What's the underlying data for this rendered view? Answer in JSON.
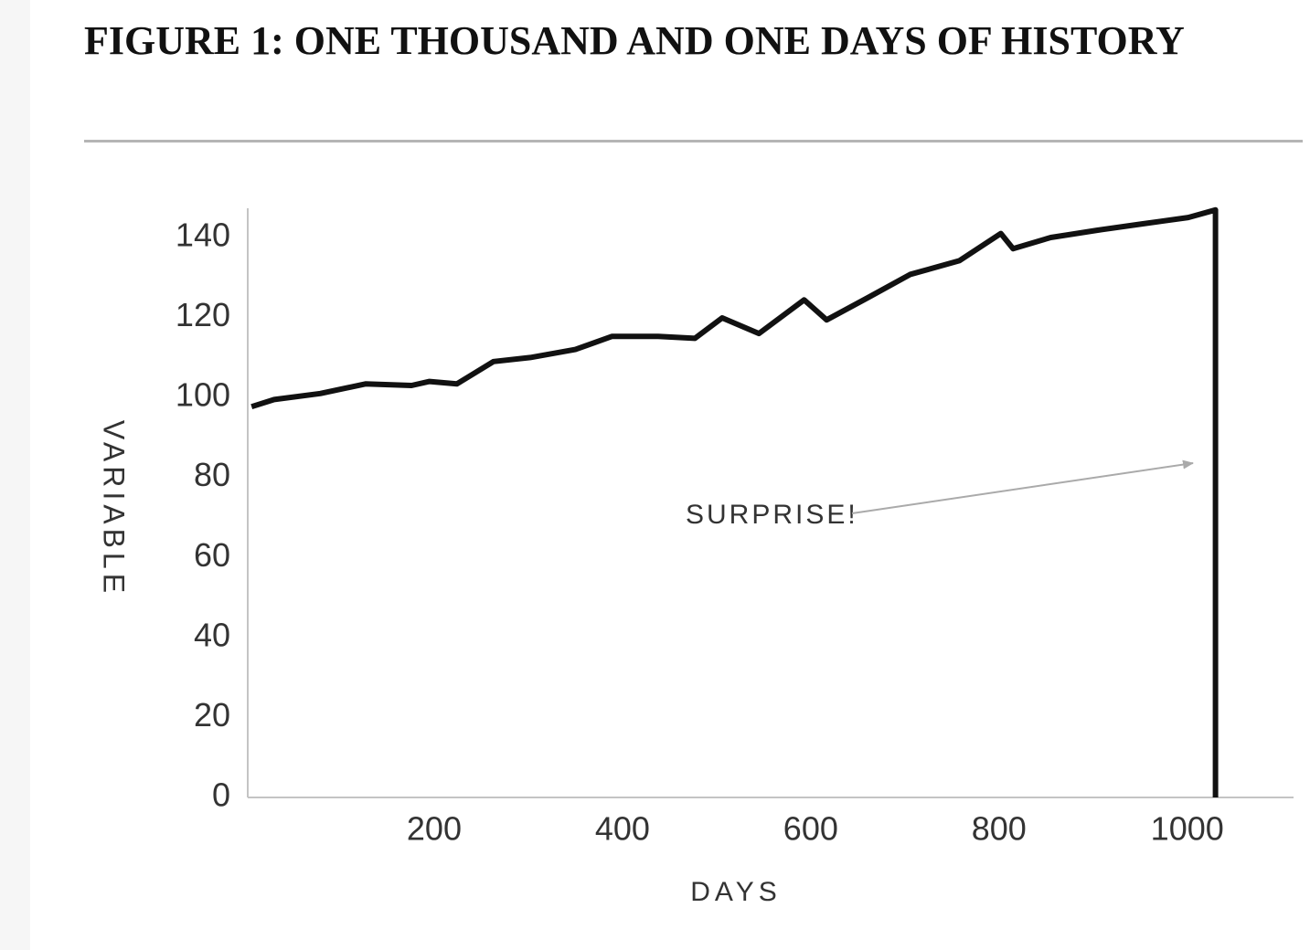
{
  "chart_data": {
    "type": "line",
    "title": "FIGURE 1: ONE THOUSAND AND ONE DAYS OF HISTORY",
    "x_label": "DAYS",
    "y_label": "VARIABLE",
    "annotation": "SURPRISE!",
    "x": [
      6,
      30,
      79,
      127,
      176,
      195,
      224,
      263,
      302,
      350,
      389,
      438,
      477,
      506,
      545,
      593,
      617,
      661,
      706,
      758,
      802,
      815,
      855,
      904,
      952,
      1001,
      1030,
      1030
    ],
    "values": [
      97.7,
      99.5,
      101,
      103.4,
      103,
      104,
      103.4,
      109,
      110,
      112,
      115.3,
      115.3,
      114.8,
      119.9,
      116,
      124.4,
      119.4,
      125,
      130.8,
      134.2,
      141,
      137.2,
      140,
      141.8,
      143.4,
      145,
      146.9,
      0
    ],
    "color": "#111111",
    "xlim": [
      0,
      1110
    ],
    "ylim": [
      0,
      148
    ],
    "xticks": [
      200,
      400,
      600,
      800,
      1000
    ],
    "yticks": [
      0,
      20,
      40,
      60,
      80,
      100,
      120,
      140
    ],
    "grid": false
  }
}
